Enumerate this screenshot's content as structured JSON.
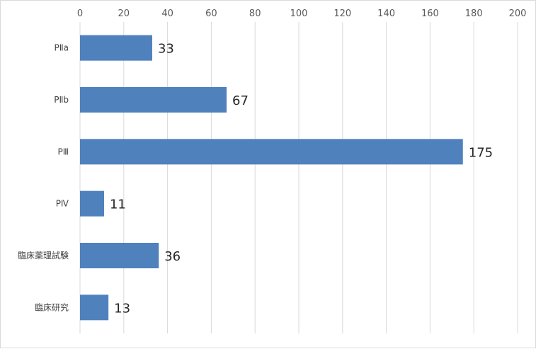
{
  "chart_data": {
    "type": "bar",
    "orientation": "horizontal",
    "categories": [
      "PⅡa",
      "PⅡb",
      "PⅢ",
      "PⅣ",
      "臨床薬理試験",
      "臨床研究"
    ],
    "values": [
      33,
      67,
      175,
      11,
      36,
      13
    ],
    "data_labels": [
      "33",
      "67",
      "175",
      "11",
      "36",
      "13"
    ],
    "xlim": [
      0,
      200
    ],
    "x_ticks": [
      0,
      20,
      40,
      60,
      80,
      100,
      120,
      140,
      160,
      180,
      200
    ],
    "x_axis_position": "top",
    "grid": true,
    "legend": "none",
    "bar_color": "#4F81BD",
    "grid_color": "#d9d9d9"
  }
}
